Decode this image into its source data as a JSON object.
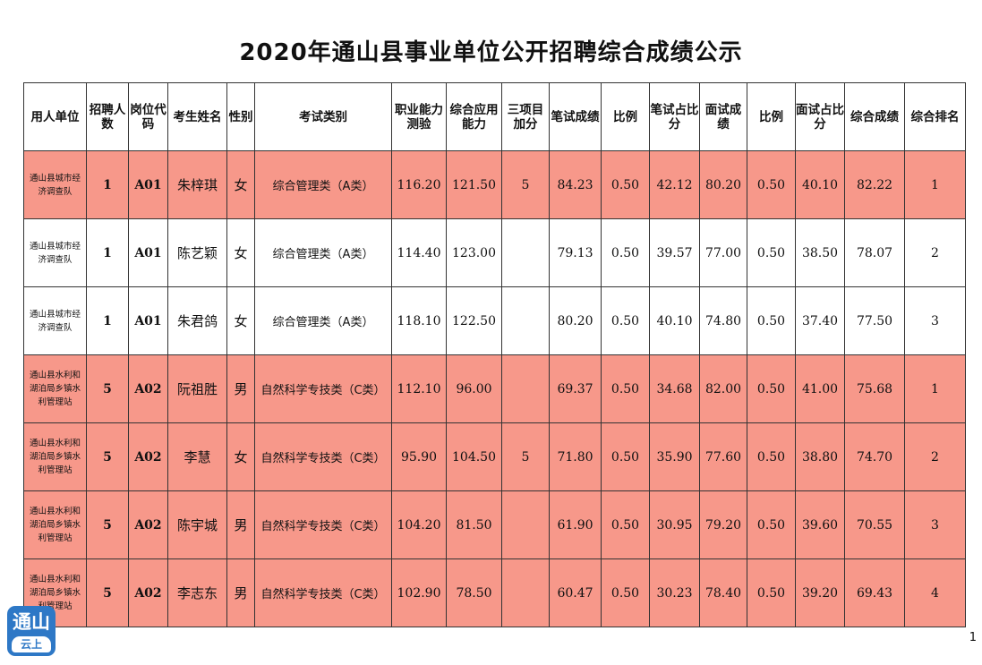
{
  "title": "2020年通山县事业单位公开招聘综合成绩公示",
  "columns": [
    "用人单位",
    "招聘人数",
    "岗位代码",
    "考生姓名",
    "性别",
    "考试类别",
    "职业能力测验",
    "综合应用能力",
    "三项目加分",
    "笔试成绩",
    "比例",
    "笔试占比分",
    "面试成绩",
    "比例",
    "面试占比分",
    "综合成绩",
    "综合排名"
  ],
  "rows": [
    {
      "unit": "通山县城市经济调查队",
      "count": "1",
      "code": "A01",
      "name": "朱梓琪",
      "gender": "女",
      "category": "综合管理类（A类）",
      "career": "116.20",
      "applied": "121.50",
      "bonus": "5",
      "written": "84.23",
      "ratio1": "0.50",
      "written_share": "42.12",
      "interview": "80.20",
      "ratio2": "0.50",
      "interview_share": "40.10",
      "total": "82.22",
      "rank": "1",
      "highlight": true
    },
    {
      "unit": "通山县城市经济调查队",
      "count": "1",
      "code": "A01",
      "name": "陈艺颖",
      "gender": "女",
      "category": "综合管理类（A类）",
      "career": "114.40",
      "applied": "123.00",
      "bonus": "",
      "written": "79.13",
      "ratio1": "0.50",
      "written_share": "39.57",
      "interview": "77.00",
      "ratio2": "0.50",
      "interview_share": "38.50",
      "total": "78.07",
      "rank": "2",
      "highlight": false
    },
    {
      "unit": "通山县城市经济调查队",
      "count": "1",
      "code": "A01",
      "name": "朱君鸽",
      "gender": "女",
      "category": "综合管理类（A类）",
      "career": "118.10",
      "applied": "122.50",
      "bonus": "",
      "written": "80.20",
      "ratio1": "0.50",
      "written_share": "40.10",
      "interview": "74.80",
      "ratio2": "0.50",
      "interview_share": "37.40",
      "total": "77.50",
      "rank": "3",
      "highlight": false
    },
    {
      "unit": "通山县水利和湖泊局乡镇水利管理站",
      "count": "5",
      "code": "A02",
      "name": "阮祖胜",
      "gender": "男",
      "category": "自然科学专技类（C类）",
      "career": "112.10",
      "applied": "96.00",
      "bonus": "",
      "written": "69.37",
      "ratio1": "0.50",
      "written_share": "34.68",
      "interview": "82.00",
      "ratio2": "0.50",
      "interview_share": "41.00",
      "total": "75.68",
      "rank": "1",
      "highlight": true
    },
    {
      "unit": "通山县水利和湖泊局乡镇水利管理站",
      "count": "5",
      "code": "A02",
      "name": "李慧",
      "gender": "女",
      "category": "自然科学专技类（C类）",
      "career": "95.90",
      "applied": "104.50",
      "bonus": "5",
      "written": "71.80",
      "ratio1": "0.50",
      "written_share": "35.90",
      "interview": "77.60",
      "ratio2": "0.50",
      "interview_share": "38.80",
      "total": "74.70",
      "rank": "2",
      "highlight": true
    },
    {
      "unit": "通山县水利和湖泊局乡镇水利管理站",
      "count": "5",
      "code": "A02",
      "name": "陈宇城",
      "gender": "男",
      "category": "自然科学专技类（C类）",
      "career": "104.20",
      "applied": "81.50",
      "bonus": "",
      "written": "61.90",
      "ratio1": "0.50",
      "written_share": "30.95",
      "interview": "79.20",
      "ratio2": "0.50",
      "interview_share": "39.60",
      "total": "70.55",
      "rank": "3",
      "highlight": true
    },
    {
      "unit": "通山县水利和湖泊局乡镇水利管理站",
      "count": "5",
      "code": "A02",
      "name": "李志东",
      "gender": "男",
      "category": "自然科学专技类（C类）",
      "career": "102.90",
      "applied": "78.50",
      "bonus": "",
      "written": "60.47",
      "ratio1": "0.50",
      "written_share": "30.23",
      "interview": "78.40",
      "ratio2": "0.50",
      "interview_share": "39.20",
      "total": "69.43",
      "rank": "4",
      "highlight": true
    }
  ],
  "page_number": "1",
  "logo": {
    "main": "通山",
    "sub": "云上"
  },
  "colors": {
    "highlight_row": "#f7988a",
    "logo_blue": "#2e78c6"
  }
}
